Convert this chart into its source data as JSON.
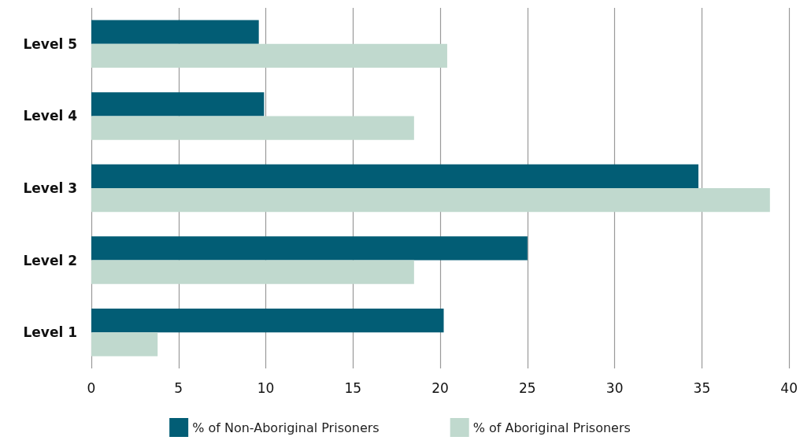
{
  "chart_data": {
    "type": "bar",
    "orientation": "horizontal",
    "categories": [
      "Level 5",
      "Level 4",
      "Level 3",
      "Level 2",
      "Level 1"
    ],
    "series": [
      {
        "name": "% of Non-Aboriginal Prisoners",
        "color": "#025d75",
        "values": [
          9.6,
          9.9,
          34.8,
          25.0,
          20.2
        ]
      },
      {
        "name": "% of Aboriginal Prisoners",
        "color": "#c0d9ce",
        "values": [
          20.4,
          18.5,
          38.9,
          18.5,
          3.8
        ]
      }
    ],
    "xlim": [
      0,
      40
    ],
    "xticks": [
      0,
      5,
      10,
      15,
      20,
      25,
      30,
      35,
      40
    ],
    "grid": "x",
    "legend": "bottom"
  }
}
